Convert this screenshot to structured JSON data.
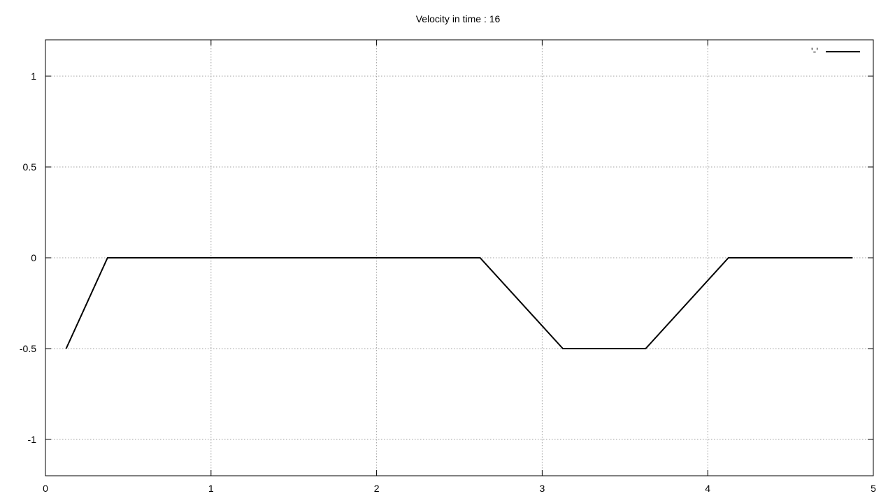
{
  "chart_data": {
    "type": "line",
    "title": "Velocity in time : 16",
    "xlabel": "",
    "ylabel": "",
    "xlim": [
      0,
      5
    ],
    "ylim": [
      -1.2,
      1.2
    ],
    "grid": true,
    "legend_position": "top-right",
    "xticks": [
      0,
      1,
      2,
      3,
      4,
      5
    ],
    "xtick_labels": [
      "0",
      "1",
      "2",
      "3",
      "4",
      "5"
    ],
    "yticks": [
      -1,
      -0.5,
      0,
      0.5,
      1
    ],
    "ytick_labels": [
      "-1",
      "-0.5",
      "0",
      "0.5",
      "1"
    ],
    "series": [
      {
        "name": "'-'",
        "color": "#000000",
        "x": [
          0.125,
          0.375,
          2.625,
          3.125,
          3.625,
          4.125,
          4.875
        ],
        "y": [
          -0.5,
          0,
          0,
          -0.5,
          -0.5,
          0,
          0
        ]
      }
    ]
  }
}
